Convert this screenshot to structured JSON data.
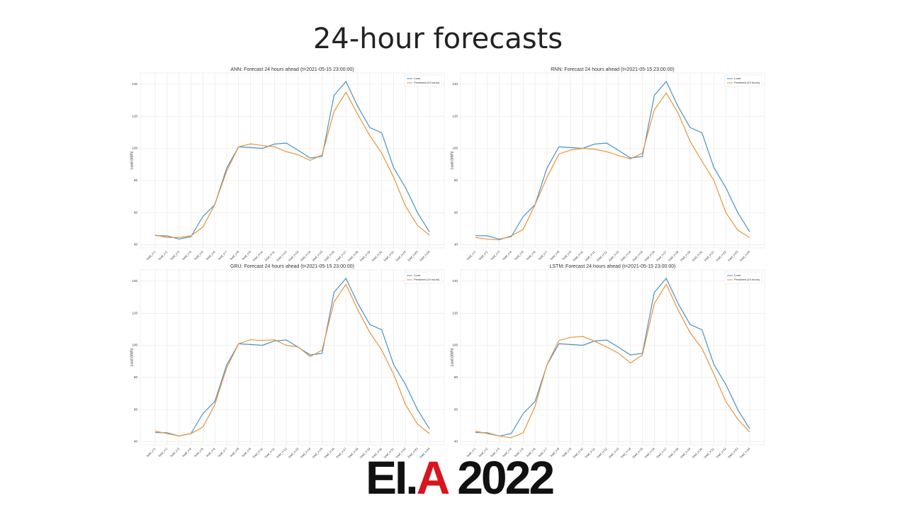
{
  "slide": {
    "title": "24-hour forecasts",
    "logo": [
      "EI.",
      "A",
      " 2022"
    ]
  },
  "chart_data": [
    {
      "type": "line",
      "title": "ANN: Forecast 24 hours ahead (t=2021-05-15 23:00:00)",
      "ylabel": "Load (kWh)",
      "categories": [
        "load_t+1",
        "load_t+2",
        "load_t+3",
        "load_t+4",
        "load_t+5",
        "load_t+6",
        "load_t+7",
        "load_t+8",
        "load_t+9",
        "load_t+10",
        "load_t+11",
        "load_t+12",
        "load_t+13",
        "load_t+14",
        "load_t+15",
        "load_t+16",
        "load_t+17",
        "load_t+18",
        "load_t+19",
        "load_t+20",
        "load_t+21",
        "load_t+22",
        "load_t+23",
        "load_t+24"
      ],
      "series": [
        {
          "name": "Load",
          "color": "#4a93c4",
          "values": [
            45.7,
            45.5,
            43.5,
            45,
            57.5,
            65,
            87.8,
            101,
            100.5,
            100,
            102.7,
            103.3,
            98.8,
            94,
            95,
            133,
            141.7,
            126,
            113,
            109.7,
            88,
            75.5,
            60,
            48
          ]
        },
        {
          "name": "Predicted (24 hours)",
          "color": "#e8943a",
          "values": [
            46,
            44.5,
            44.5,
            45.5,
            51,
            65,
            86,
            101,
            102.8,
            101.8,
            101,
            98,
            96,
            92.5,
            96,
            123,
            135,
            121,
            108,
            97,
            82,
            64,
            52,
            46
          ]
        }
      ],
      "ylim": [
        38,
        147
      ],
      "yticks": [
        40,
        60,
        80,
        100,
        120,
        140
      ],
      "grid": true,
      "legend": "upper right"
    },
    {
      "type": "line",
      "title": "RNN: Forecast 24 hours ahead (t=2021-05-15 23:00:00)",
      "ylabel": "Load (kWh)",
      "categories": [
        "load_t+1",
        "load_t+2",
        "load_t+3",
        "load_t+4",
        "load_t+5",
        "load_t+6",
        "load_t+7",
        "load_t+8",
        "load_t+9",
        "load_t+10",
        "load_t+11",
        "load_t+12",
        "load_t+13",
        "load_t+14",
        "load_t+15",
        "load_t+16",
        "load_t+17",
        "load_t+18",
        "load_t+19",
        "load_t+20",
        "load_t+21",
        "load_t+22",
        "load_t+23",
        "load_t+24"
      ],
      "series": [
        {
          "name": "Load",
          "color": "#4a93c4",
          "values": [
            45.7,
            45.5,
            43.5,
            45,
            57.5,
            65,
            87.8,
            101,
            100.5,
            100,
            102.7,
            103.3,
            98.8,
            94,
            95,
            133,
            141.7,
            126,
            113,
            109.7,
            88,
            75.5,
            60,
            48
          ]
        },
        {
          "name": "Predicted (24 hours)",
          "color": "#e8943a",
          "values": [
            44.5,
            43.5,
            43,
            45.5,
            49.5,
            65,
            82,
            96.5,
            99,
            100,
            99.5,
            98,
            95.5,
            93.5,
            97,
            124,
            134.5,
            122,
            104.5,
            92,
            80,
            60,
            49,
            44.5
          ]
        }
      ],
      "ylim": [
        38,
        147
      ],
      "yticks": [
        40,
        60,
        80,
        100,
        120,
        140
      ],
      "grid": true,
      "legend": "upper right"
    },
    {
      "type": "line",
      "title": "GRU: Forecast 24 hours ahead (t=2021-05-15 23:00:00)",
      "ylabel": "Load (kWh)",
      "categories": [
        "load_t+1",
        "load_t+2",
        "load_t+3",
        "load_t+4",
        "load_t+5",
        "load_t+6",
        "load_t+7",
        "load_t+8",
        "load_t+9",
        "load_t+10",
        "load_t+11",
        "load_t+12",
        "load_t+13",
        "load_t+14",
        "load_t+15",
        "load_t+16",
        "load_t+17",
        "load_t+18",
        "load_t+19",
        "load_t+20",
        "load_t+21",
        "load_t+22",
        "load_t+23",
        "load_t+24"
      ],
      "series": [
        {
          "name": "Load",
          "color": "#4a93c4",
          "values": [
            45.7,
            45.5,
            43.5,
            45,
            57.5,
            65,
            87.8,
            101,
            100.5,
            100,
            102.7,
            103.3,
            98.8,
            94,
            95,
            133,
            141.7,
            126,
            113,
            109.7,
            88,
            75.5,
            60,
            48
          ]
        },
        {
          "name": "Predicted (24 hours)",
          "color": "#e8943a",
          "values": [
            46.5,
            45,
            43.5,
            45,
            49,
            63,
            86,
            101,
            103.5,
            103,
            103.5,
            100,
            99,
            93,
            97,
            127,
            138,
            122,
            108,
            97,
            82,
            63,
            51,
            45
          ]
        }
      ],
      "ylim": [
        38,
        147
      ],
      "yticks": [
        40,
        60,
        80,
        100,
        120,
        140
      ],
      "grid": true,
      "legend": "upper right"
    },
    {
      "type": "line",
      "title": "LSTM: Forecast 24 hours ahead (t=2021-05-15 23:00:00)",
      "ylabel": "Load (kWh)",
      "categories": [
        "load_t+1",
        "load_t+2",
        "load_t+3",
        "load_t+4",
        "load_t+5",
        "load_t+6",
        "load_t+7",
        "load_t+8",
        "load_t+9",
        "load_t+10",
        "load_t+11",
        "load_t+12",
        "load_t+13",
        "load_t+14",
        "load_t+15",
        "load_t+16",
        "load_t+17",
        "load_t+18",
        "load_t+19",
        "load_t+20",
        "load_t+21",
        "load_t+22",
        "load_t+23",
        "load_t+24"
      ],
      "series": [
        {
          "name": "Load",
          "color": "#4a93c4",
          "values": [
            45.7,
            45.5,
            43.5,
            45,
            57.5,
            65,
            87.8,
            101,
            100.5,
            100,
            102.7,
            103.3,
            98.8,
            94,
            95,
            133,
            141.7,
            126,
            113,
            109.7,
            88,
            75.5,
            60,
            48
          ]
        },
        {
          "name": "Predicted (24 hours)",
          "color": "#e8943a",
          "values": [
            46.5,
            45,
            43.5,
            42.5,
            45.5,
            62,
            88,
            103,
            105,
            105.5,
            102.5,
            99,
            95,
            89,
            94,
            126,
            138,
            122,
            108,
            98,
            82,
            65,
            54,
            46
          ]
        }
      ],
      "ylim": [
        38,
        147
      ],
      "yticks": [
        40,
        60,
        80,
        100,
        120,
        140
      ],
      "grid": true,
      "legend": "upper right"
    }
  ]
}
